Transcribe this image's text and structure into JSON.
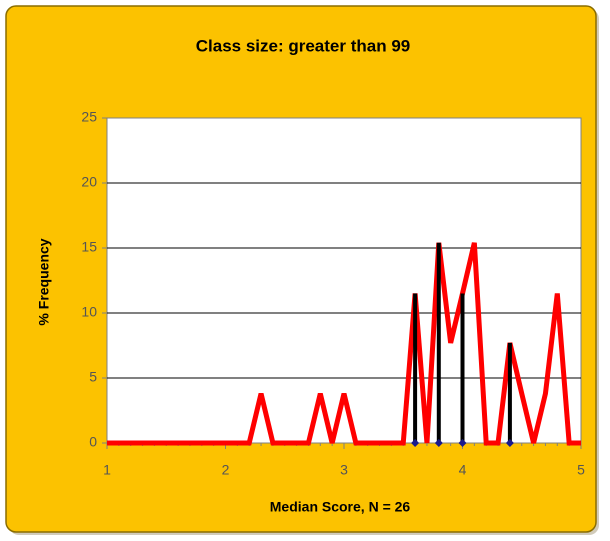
{
  "chart_data": {
    "type": "line",
    "title": "Class size: greater than 99",
    "xlabel": "Median Score, N = 26",
    "ylabel": "% Frequency",
    "x": [
      1.0,
      1.1,
      1.2,
      1.3,
      1.4,
      1.5,
      1.6,
      1.7,
      1.8,
      1.9,
      2.0,
      2.1,
      2.2,
      2.3,
      2.4,
      2.5,
      2.6,
      2.7,
      2.8,
      2.9,
      3.0,
      3.1,
      3.2,
      3.3,
      3.4,
      3.5,
      3.6,
      3.7,
      3.8,
      3.9,
      4.0,
      4.1,
      4.2,
      4.3,
      4.4,
      4.5,
      4.6,
      4.7,
      4.8,
      4.9,
      5.0
    ],
    "series": [
      {
        "color": "#ff0000",
        "values": [
          0,
          0,
          0,
          0,
          0,
          0,
          0,
          0,
          0,
          0,
          0,
          0,
          0,
          3.8,
          0,
          0,
          0,
          0,
          3.8,
          0,
          3.8,
          0,
          0,
          0,
          0,
          0,
          11.5,
          0,
          15.4,
          7.7,
          11.5,
          15.4,
          0,
          0,
          7.7,
          3.8,
          0,
          3.8,
          11.5,
          0,
          0
        ]
      },
      {
        "type": "bar",
        "color": "#000000",
        "marker_color": "#1a1a8c",
        "x": [
          3.6,
          3.8,
          4.0,
          4.4
        ],
        "values": [
          11.5,
          15.4,
          11.5,
          7.7
        ]
      }
    ],
    "xlim": [
      1,
      5
    ],
    "xticks": [
      1,
      2,
      3,
      4,
      5
    ],
    "ylim": [
      0,
      25
    ],
    "yticks": [
      0,
      5,
      10,
      15,
      20,
      25
    ],
    "grid": true
  }
}
